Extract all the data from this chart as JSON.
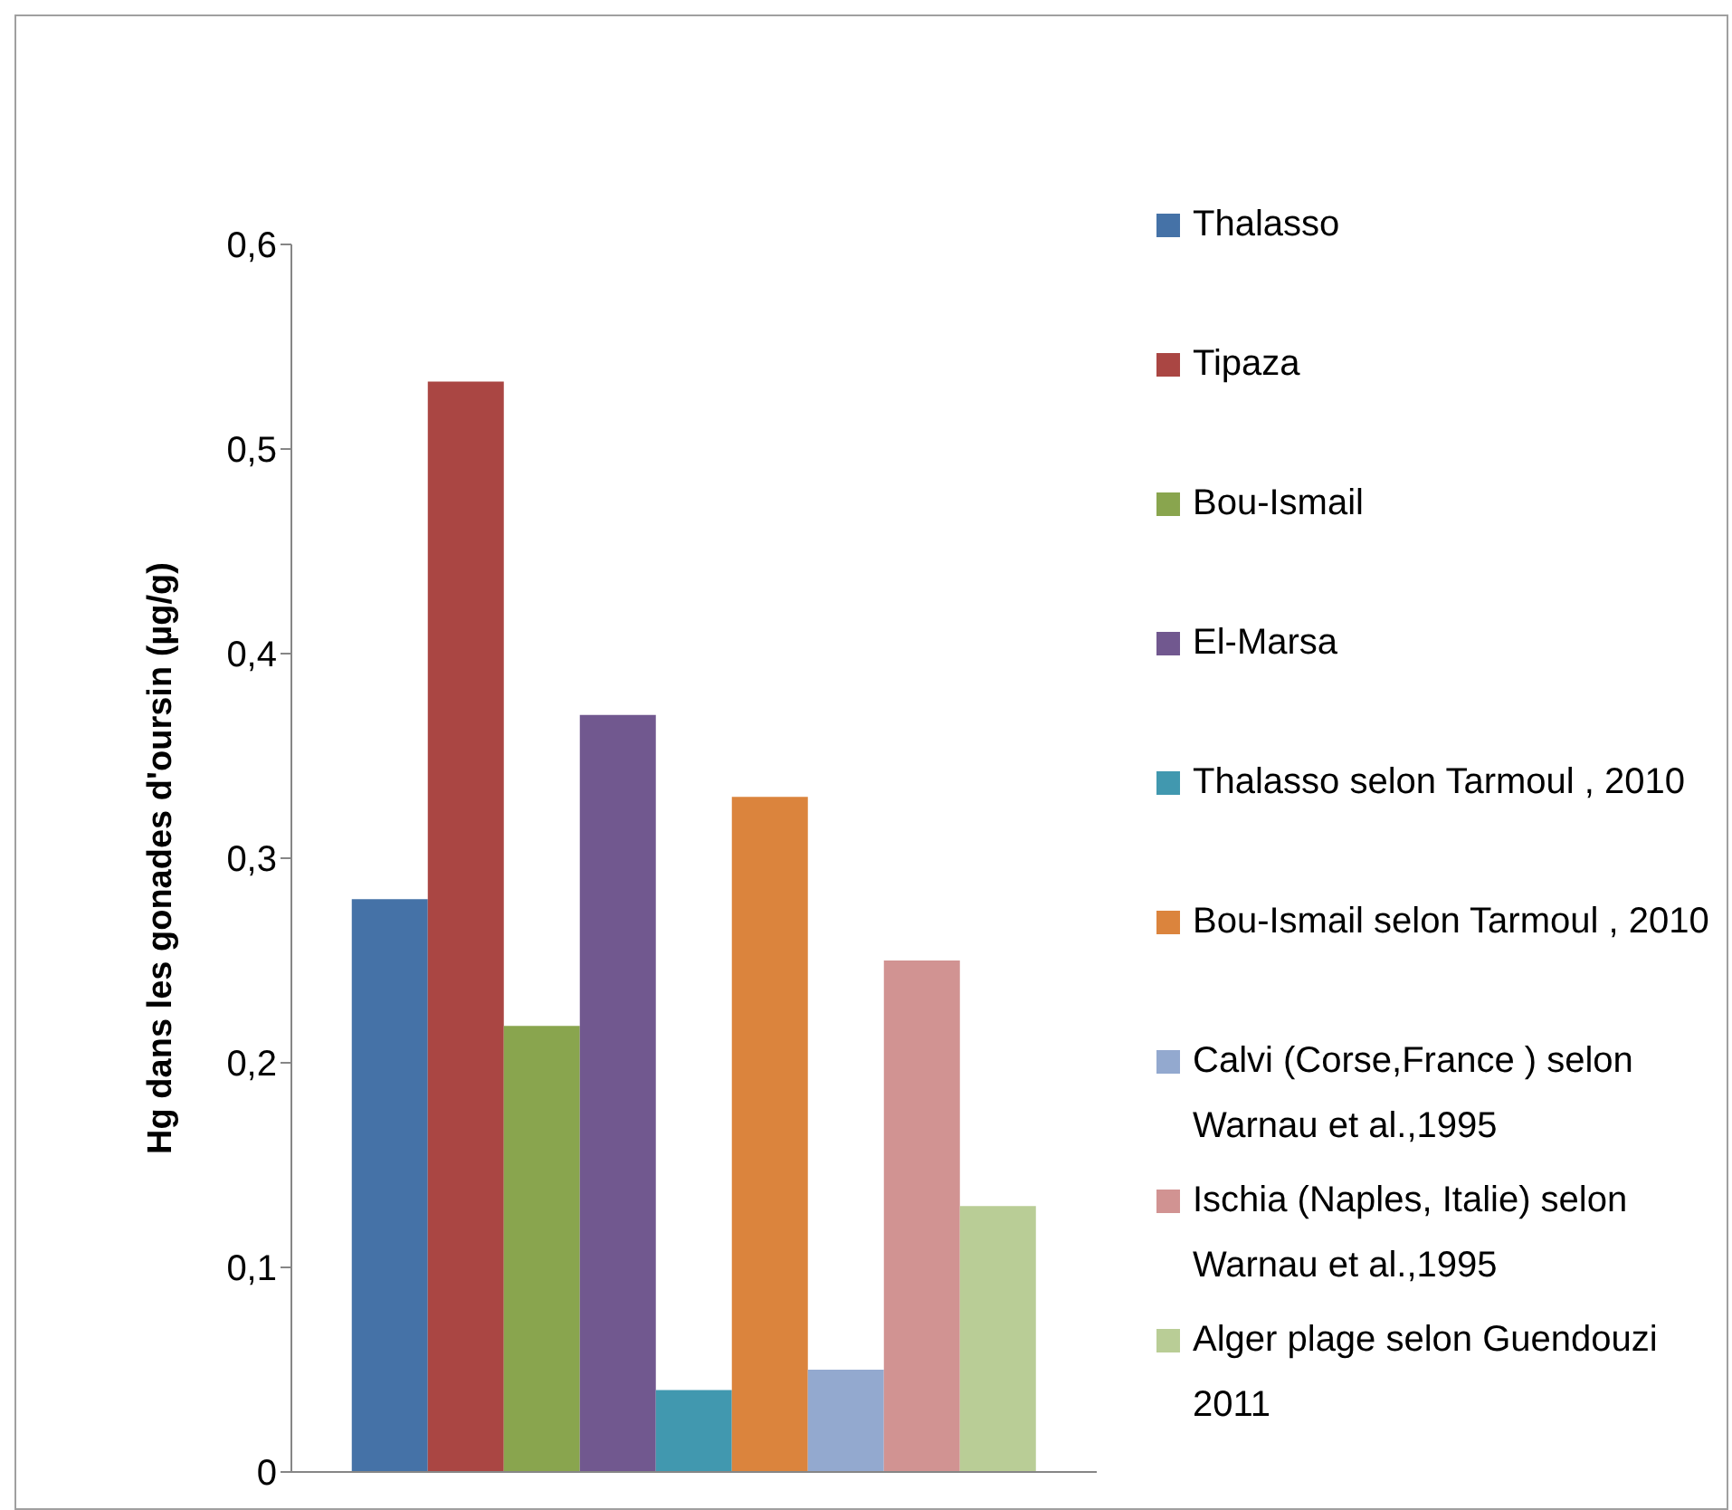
{
  "chart_data": {
    "type": "bar",
    "ylabel": "Hg dans les gonades d'oursin (µg/g)",
    "categories": [
      null
    ],
    "series": [
      {
        "name": "Thalasso",
        "color": "#4572a7",
        "values": [
          0.28
        ]
      },
      {
        "name": "Tipaza",
        "color": "#aa4643",
        "values": [
          0.533
        ]
      },
      {
        "name": "Bou-Ismail",
        "color": "#89a54e",
        "values": [
          0.218
        ]
      },
      {
        "name": "El-Marsa",
        "color": "#71588f",
        "values": [
          0.37
        ]
      },
      {
        "name": "Thalasso selon Tarmoul , 2010",
        "color": "#4198af",
        "values": [
          0.04
        ]
      },
      {
        "name": "Bou-Ismail selon Tarmoul , 2010",
        "color": "#db843d",
        "values": [
          0.33
        ]
      },
      {
        "name": "Calvi (Corse,France ) selon Warnau et al.,1995",
        "color": "#93a9cf",
        "values": [
          0.05
        ]
      },
      {
        "name": "Ischia (Naples, Italie) selon Warnau et al.,1995",
        "color": "#d19392",
        "values": [
          0.25
        ]
      },
      {
        "name": "Alger plage selon Guendouzi 2011",
        "color": "#b9cd96",
        "values": [
          0.13
        ]
      }
    ],
    "ylim": [
      0,
      0.6
    ],
    "yticks": [
      {
        "value": 0,
        "label": "0"
      },
      {
        "value": 0.1,
        "label": "0,1"
      },
      {
        "value": 0.2,
        "label": "0,2"
      },
      {
        "value": 0.3,
        "label": "0,3"
      },
      {
        "value": 0.4,
        "label": "0,4"
      },
      {
        "value": 0.5,
        "label": "0,5"
      },
      {
        "value": 0.6,
        "label": "0,6"
      }
    ],
    "grid": false,
    "legend": "right"
  }
}
